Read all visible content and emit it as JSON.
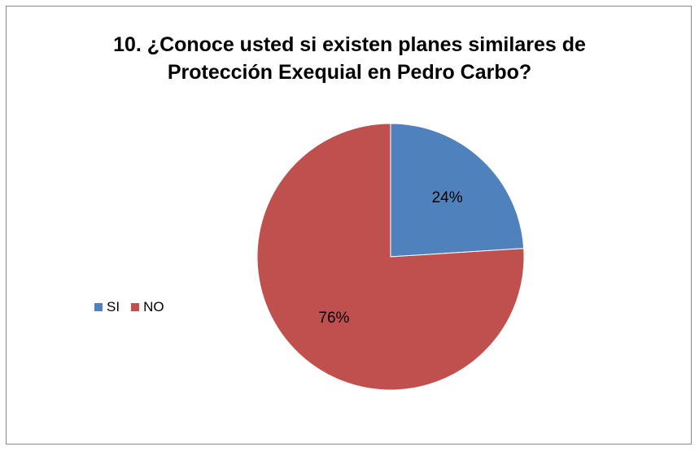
{
  "chart_data": {
    "type": "pie",
    "title": "10. ¿Conoce usted si existen planes similares de\nProtección Exequial en Pedro Carbo?",
    "categories": [
      "SI",
      "NO"
    ],
    "values": [
      24,
      76
    ],
    "data_labels": [
      "24%",
      "76%"
    ],
    "colors": [
      "#4F81BD",
      "#C0504D"
    ],
    "legend_position": "left"
  }
}
